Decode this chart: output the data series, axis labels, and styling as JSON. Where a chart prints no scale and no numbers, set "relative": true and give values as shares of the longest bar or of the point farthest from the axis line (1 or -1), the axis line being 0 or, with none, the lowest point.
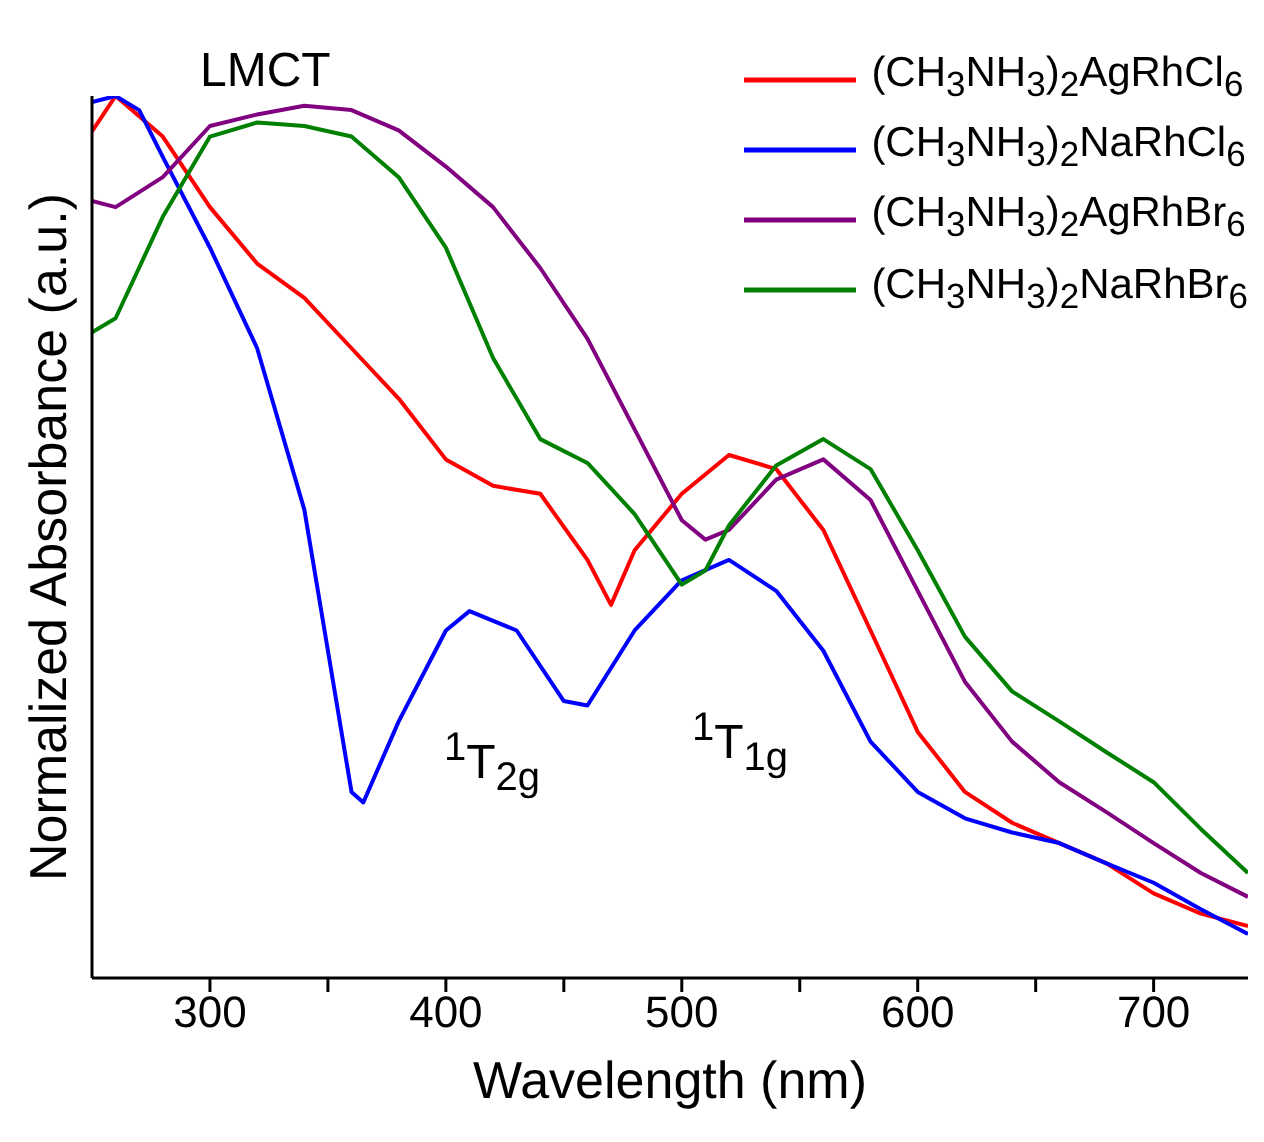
{
  "chart_data": {
    "type": "line",
    "xlabel": "Wavelength (nm)",
    "ylabel": "Normalized Absorbance (a.u.)",
    "relative": true,
    "xlim": [
      250,
      740
    ],
    "xticks": [
      300,
      {
        "value": 350,
        "label": null
      },
      400,
      {
        "value": 450,
        "label": null
      },
      500,
      {
        "value": 550,
        "label": null
      },
      600,
      {
        "value": 650,
        "label": null
      },
      700
    ],
    "legend": "top right",
    "grid": false,
    "marker": "none",
    "line_style": "solid",
    "annotations": [
      "LMCT",
      "$^{1}$T$_{2g}$",
      "$^{1}$T$_{1g}$"
    ],
    "series": [
      {
        "name": "(CH$_{3}$NH$_{3}$)$_{2}$AgRhCl$_{6}$",
        "color": "#ff0000",
        "x": [
          250,
          260,
          280,
          300,
          320,
          340,
          360,
          380,
          400,
          420,
          440,
          460,
          470,
          480,
          500,
          520,
          540,
          560,
          580,
          600,
          620,
          640,
          660,
          680,
          700,
          720,
          740
        ],
        "values": [
          0.96,
          1.0,
          0.954,
          0.874,
          0.81,
          0.771,
          0.714,
          0.657,
          0.588,
          0.558,
          0.549,
          0.474,
          0.423,
          0.485,
          0.549,
          0.593,
          0.577,
          0.508,
          0.394,
          0.279,
          0.211,
          0.176,
          0.153,
          0.13,
          0.096,
          0.073,
          0.059
        ]
      },
      {
        "name": "(CH$_{3}$NH$_{3}$)$_{2}$NaRhCl$_{6}$",
        "color": "#0000ff",
        "x": [
          250,
          260,
          270,
          280,
          300,
          320,
          340,
          350,
          360,
          365,
          380,
          400,
          410,
          430,
          450,
          460,
          480,
          500,
          520,
          540,
          560,
          580,
          600,
          620,
          640,
          660,
          680,
          700,
          720,
          740
        ],
        "values": [
          0.993,
          1.0,
          0.984,
          0.931,
          0.828,
          0.714,
          0.531,
          0.371,
          0.211,
          0.199,
          0.291,
          0.394,
          0.416,
          0.394,
          0.314,
          0.309,
          0.394,
          0.451,
          0.474,
          0.439,
          0.371,
          0.268,
          0.211,
          0.181,
          0.165,
          0.153,
          0.13,
          0.108,
          0.078,
          0.05
        ]
      },
      {
        "name": "(CH$_{3}$NH$_{3}$)$_{2}$AgRhBr$_{6}$",
        "color": "#800080",
        "x": [
          250,
          260,
          280,
          300,
          320,
          340,
          360,
          380,
          400,
          420,
          440,
          460,
          480,
          500,
          510,
          520,
          540,
          560,
          580,
          600,
          620,
          640,
          660,
          680,
          700,
          720,
          740
        ],
        "values": [
          0.881,
          0.874,
          0.908,
          0.966,
          0.979,
          0.989,
          0.984,
          0.961,
          0.92,
          0.874,
          0.805,
          0.725,
          0.622,
          0.519,
          0.497,
          0.508,
          0.565,
          0.588,
          0.542,
          0.439,
          0.336,
          0.268,
          0.222,
          0.188,
          0.153,
          0.119,
          0.092
        ]
      },
      {
        "name": "(CH$_{3}$NH$_{3}$)$_{2}$NaRhBr$_{6}$",
        "color": "#008000",
        "x": [
          250,
          260,
          280,
          300,
          320,
          340,
          360,
          380,
          400,
          420,
          440,
          460,
          480,
          500,
          510,
          520,
          540,
          560,
          580,
          600,
          620,
          640,
          660,
          680,
          700,
          720,
          740
        ],
        "values": [
          0.732,
          0.748,
          0.863,
          0.954,
          0.97,
          0.966,
          0.954,
          0.908,
          0.828,
          0.703,
          0.611,
          0.584,
          0.526,
          0.446,
          0.462,
          0.513,
          0.581,
          0.611,
          0.577,
          0.485,
          0.387,
          0.325,
          0.291,
          0.256,
          0.222,
          0.169,
          0.119
        ]
      }
    ]
  }
}
